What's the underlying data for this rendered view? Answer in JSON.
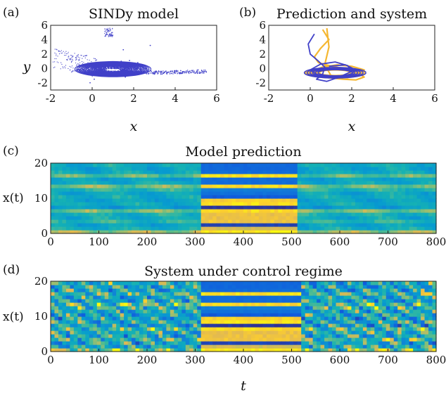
{
  "chart_data": [
    {
      "type": "scatter",
      "panel": "(a)",
      "title": "SINDy model",
      "xlabel": "x",
      "ylabel": "y",
      "xlim": [
        -2,
        6
      ],
      "ylim": [
        -3,
        6
      ],
      "xticks": [
        "-2",
        "0",
        "2",
        "4",
        "6"
      ],
      "yticks": [
        "-2",
        "0",
        "2",
        "4",
        "6"
      ],
      "series": [
        {
          "color": "#4040c8",
          "x": [
            0.0,
            0.3,
            0.6,
            1.0,
            1.4,
            1.8,
            2.2,
            2.4,
            2.0,
            1.6,
            1.2,
            0.8,
            0.4,
            0.1,
            -0.1,
            -0.6,
            -1.2,
            -1.6,
            3.0,
            3.6,
            4.2,
            4.8,
            5.1,
            5.3,
            5.5,
            0.7,
            0.8,
            0.9,
            1.5,
            2.8
          ],
          "y": [
            -0.5,
            -0.2,
            0.3,
            0.8,
            1.0,
            1.1,
            0.8,
            0.3,
            -0.6,
            -1.2,
            -1.0,
            -0.6,
            -0.3,
            -1.5,
            -2.0,
            0.2,
            1.2,
            2.4,
            -0.6,
            -0.7,
            -0.6,
            -0.3,
            -0.2,
            -0.4,
            -0.5,
            4.8,
            5.3,
            4.6,
            2.6,
            3.2
          ]
        }
      ]
    },
    {
      "type": "line",
      "panel": "(b)",
      "title": "Prediction and system",
      "xlabel": "x",
      "ylabel": "",
      "xlim": [
        -2,
        6
      ],
      "ylim": [
        -3,
        6
      ],
      "xticks": [
        "-2",
        "0",
        "2",
        "4",
        "6"
      ],
      "yticks": [
        "-2",
        "0",
        "2",
        "4",
        "6"
      ],
      "series": [
        {
          "color": "#f5b731",
          "x": [
            0.6,
            0.9,
            0.5,
            0.2,
            0.4,
            0.9,
            1.6,
            2.3,
            2.6,
            2.2,
            1.6,
            0.9,
            0.2,
            0.1,
            0.6,
            1.3,
            2.0,
            2.6,
            2.4,
            1.8,
            1.0,
            0.7,
            0.9,
            0.8
          ],
          "y": [
            5.4,
            4.0,
            2.8,
            1.6,
            0.8,
            0.4,
            0.0,
            -0.6,
            -1.2,
            -1.6,
            -1.5,
            -1.3,
            -1.0,
            -0.4,
            0.2,
            0.5,
            0.3,
            -0.2,
            -0.9,
            -1.3,
            -1.0,
            0.5,
            3.0,
            5.6
          ]
        },
        {
          "color": "#4040c8",
          "x": [
            0.2,
            -0.1,
            0.0,
            0.4,
            0.7,
            0.6,
            0.3,
            0.8,
            1.4,
            2.0,
            1.8,
            1.2,
            0.5,
            0.0,
            0.4,
            1.2,
            1.9,
            2.2,
            1.7,
            0.9
          ],
          "y": [
            4.8,
            3.4,
            2.0,
            1.0,
            0.2,
            -0.8,
            -1.5,
            -1.8,
            -1.2,
            -0.4,
            0.4,
            0.9,
            0.6,
            -0.2,
            -1.0,
            -1.4,
            -1.0,
            -0.2,
            0.5,
            0.3
          ]
        }
      ]
    },
    {
      "type": "heatmap",
      "panel": "(c)",
      "title": "Model prediction",
      "xlabel": "",
      "ylabel": "x(t)",
      "xlim": [
        0,
        800
      ],
      "ylim": [
        0,
        20
      ],
      "xticks": [
        "0",
        "100",
        "200",
        "300",
        "400",
        "500",
        "600",
        "700",
        "800"
      ],
      "yticks": [
        "0",
        "10",
        "20"
      ],
      "segments": [
        {
          "t": [
            0,
            310
          ],
          "regime": "oscillating"
        },
        {
          "t": [
            310,
            510
          ],
          "regime": "controlled"
        },
        {
          "t": [
            510,
            800
          ],
          "regime": "oscillating"
        }
      ]
    },
    {
      "type": "heatmap",
      "panel": "(d)",
      "title": "System under control regime",
      "xlabel": "t",
      "ylabel": "x(t)",
      "xlim": [
        0,
        800
      ],
      "ylim": [
        0,
        20
      ],
      "xticks": [
        "0",
        "100",
        "200",
        "300",
        "400",
        "500",
        "600",
        "700",
        "800"
      ],
      "yticks": [
        "0",
        "10",
        "20"
      ],
      "segments": [
        {
          "t": [
            0,
            310
          ],
          "regime": "chaotic"
        },
        {
          "t": [
            310,
            520
          ],
          "regime": "controlled"
        },
        {
          "t": [
            520,
            800
          ],
          "regime": "chaotic"
        }
      ]
    }
  ]
}
